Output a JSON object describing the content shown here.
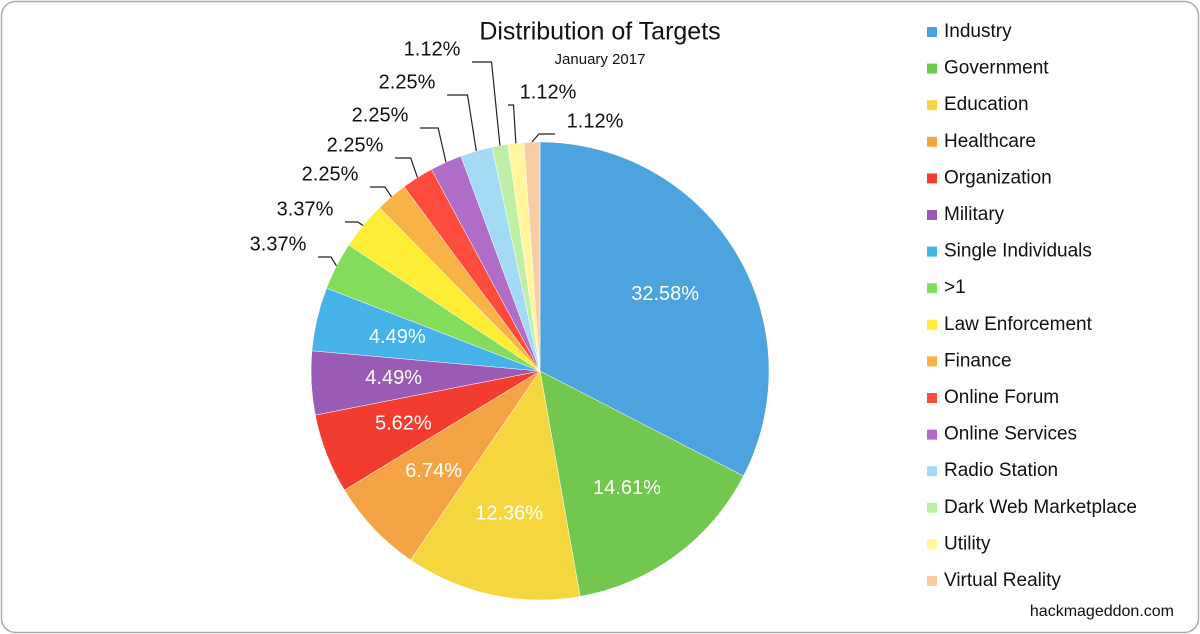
{
  "chart_data": {
    "type": "pie",
    "title": "Distribution of Targets",
    "subtitle": "January 2017",
    "categories": [
      "Industry",
      "Government",
      "Education",
      "Healthcare",
      "Organization",
      "Military",
      "Single Individuals",
      ">1",
      "Law Enforcement",
      "Finance",
      "Online Forum",
      "Online Services",
      "Radio Station",
      "Dark Web Marketplace",
      "Utility",
      "Virtual Reality"
    ],
    "values": [
      32.58,
      14.61,
      12.36,
      6.74,
      5.62,
      4.49,
      4.49,
      3.37,
      3.37,
      2.25,
      2.25,
      2.25,
      2.25,
      1.12,
      1.12,
      1.12
    ],
    "value_labels": [
      "32.58%",
      "14.61%",
      "12.36%",
      "6.74%",
      "5.62%",
      "4.49%",
      "4.49%",
      "3.37%",
      "3.37%",
      "2.25%",
      "2.25%",
      "2.25%",
      "2.25%",
      "1.12%",
      "1.12%",
      "1.12%"
    ],
    "colors": [
      "#4da3dd",
      "#72c74e",
      "#f6d63e",
      "#f5a445",
      "#f23c30",
      "#9a5bb5",
      "#45b2ea",
      "#84dc5c",
      "#fdee35",
      "#f9b245",
      "#fd4c3d",
      "#b06dc8",
      "#a3daf6",
      "#bdf0a6",
      "#fff69d",
      "#f9cda4"
    ],
    "legend": "right",
    "source": "hackmageddon.com"
  }
}
